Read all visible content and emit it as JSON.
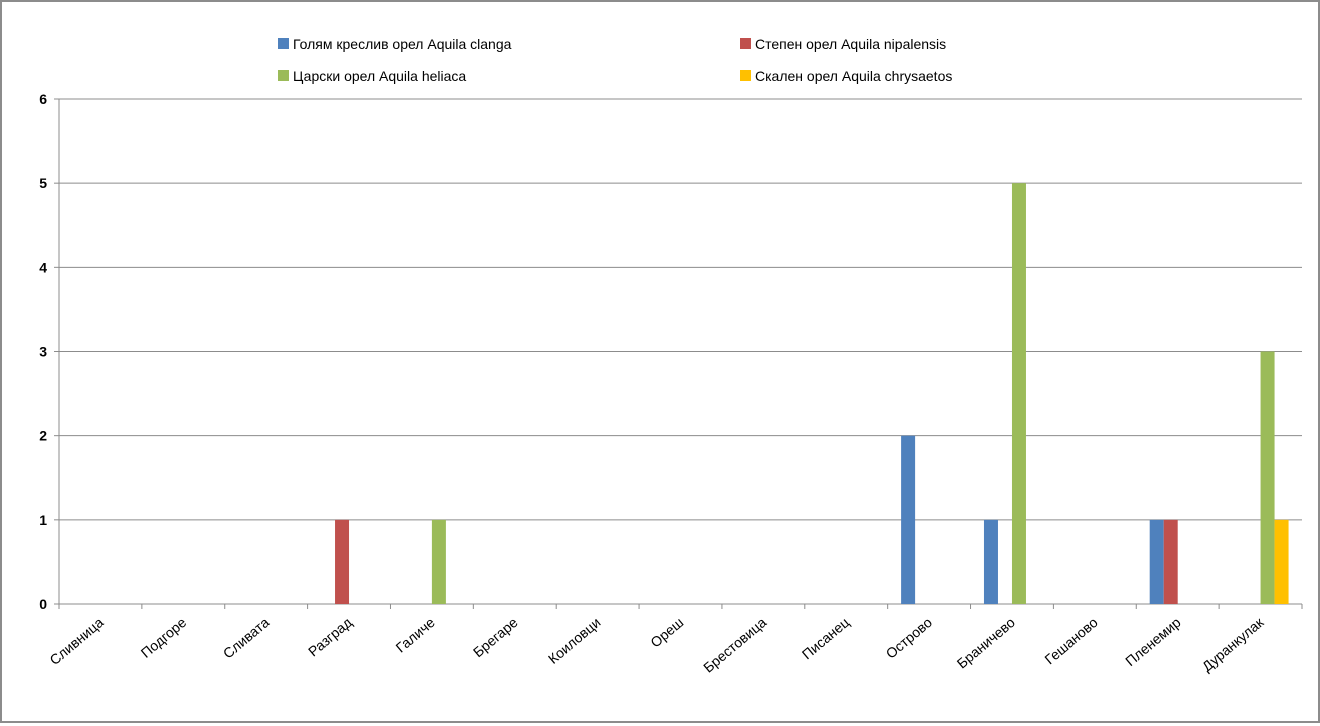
{
  "chart_data": {
    "type": "bar",
    "title": "",
    "xlabel": "",
    "ylabel": "",
    "ylim": [
      0,
      6
    ],
    "yticks": [
      0,
      1,
      2,
      3,
      4,
      5,
      6
    ],
    "grid": true,
    "legend_position": "top",
    "categories": [
      "Сливница",
      "Подгоре",
      "Сливата",
      "Разград",
      "Галиче",
      "Брегаре",
      "Коиловци",
      "Ореш",
      "Брестовица",
      "Писанец",
      "Острово",
      "Браничево",
      "Гешаново",
      "Пленемир",
      "Дуранкулак"
    ],
    "series": [
      {
        "name": "Голям креслив орел Aquila clanga",
        "color": "#4f81bd",
        "values": [
          0,
          0,
          0,
          0,
          0,
          0,
          0,
          0,
          0,
          0,
          2,
          1,
          0,
          1,
          0
        ]
      },
      {
        "name": "Степен орел Aquila nipalensis",
        "color": "#c0504d",
        "values": [
          0,
          0,
          0,
          1,
          0,
          0,
          0,
          0,
          0,
          0,
          0,
          0,
          0,
          1,
          0
        ]
      },
      {
        "name": "Царски орел Aquila heliaca",
        "color": "#9bbb59",
        "values": [
          0,
          0,
          0,
          0,
          1,
          0,
          0,
          0,
          0,
          0,
          0,
          5,
          0,
          0,
          3
        ]
      },
      {
        "name": "Скален орел Aquila chrysaetos",
        "color": "#ffc000",
        "values": [
          0,
          0,
          0,
          0,
          0,
          0,
          0,
          0,
          0,
          0,
          0,
          0,
          0,
          0,
          1
        ]
      }
    ]
  }
}
